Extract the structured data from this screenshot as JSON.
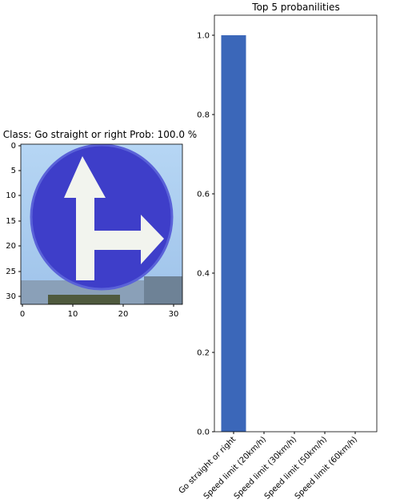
{
  "image_panel": {
    "title": "Class: Go straight or right Prob: 100.0 %",
    "x_ticks": [
      "0",
      "10",
      "20",
      "30"
    ],
    "y_ticks": [
      "0",
      "5",
      "10",
      "15",
      "20",
      "25",
      "30"
    ],
    "sign_colors": {
      "sky": "#a9cdf0",
      "sign": "#3c3ccc",
      "arrow": "#f4f6f0",
      "ground": "#5a6a4a"
    }
  },
  "chart_data": {
    "type": "bar",
    "title": "Top 5 probanilities",
    "categories": [
      "Go straight or right",
      "Speed limit (20km/h)",
      "Speed limit (30km/h)",
      "Speed limit (50km/h)",
      "Speed limit (60km/h)"
    ],
    "values": [
      1.0,
      0.0,
      0.0,
      0.0,
      0.0
    ],
    "ylim": [
      0,
      1.0
    ],
    "y_ticks": [
      "0.0",
      "0.2",
      "0.4",
      "0.6",
      "0.8",
      "1.0"
    ],
    "bar_color": "#3b67b9",
    "grid": false,
    "xlabel": "",
    "ylabel": ""
  }
}
